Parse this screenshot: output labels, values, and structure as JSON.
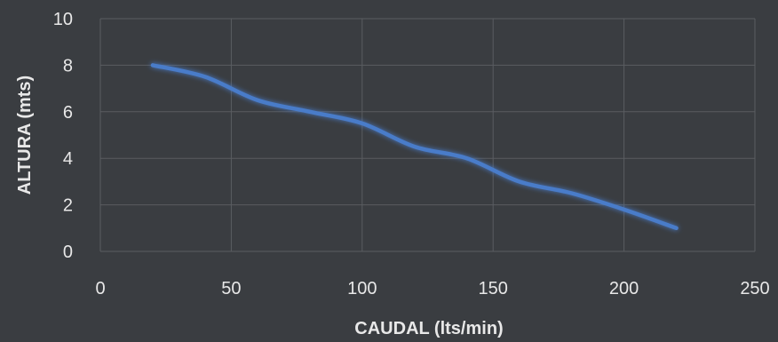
{
  "chart_data": {
    "type": "line",
    "title": "",
    "xlabel": "CAUDAL (lts/min)",
    "ylabel": "ALTURA (mts)",
    "xlim": [
      0,
      250
    ],
    "ylim": [
      0,
      10
    ],
    "x_ticks": [
      "0",
      "50",
      "100",
      "150",
      "200",
      "250"
    ],
    "y_ticks": [
      "0",
      "2",
      "4",
      "6",
      "8",
      "10"
    ],
    "grid": true,
    "legend": "none",
    "colors": {
      "background": "#3a3d41",
      "grid": "#5a5d61",
      "line": "#4a7cc9",
      "text": "#e8e8e8"
    },
    "series": [
      {
        "x": [
          20,
          40,
          60,
          80,
          100,
          120,
          140,
          160,
          180,
          200,
          220
        ],
        "values": [
          8,
          7.5,
          6.5,
          6,
          5.5,
          4.5,
          4,
          3,
          2.5,
          1.8,
          1
        ]
      }
    ]
  }
}
